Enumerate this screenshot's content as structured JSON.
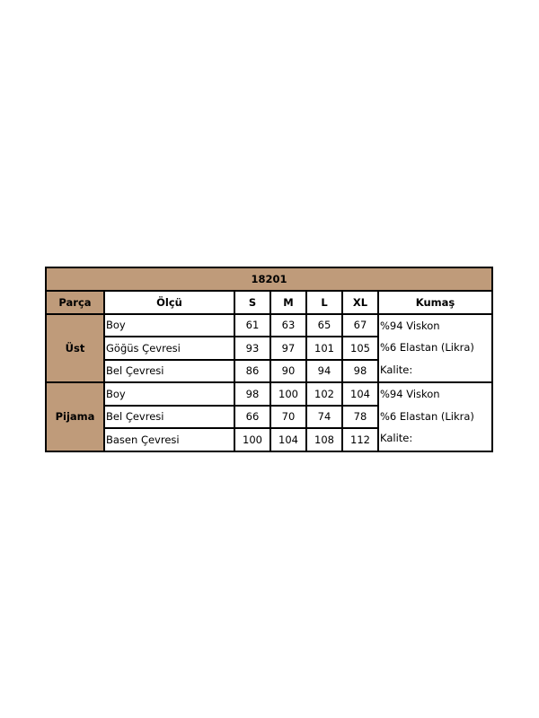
{
  "title": "18201",
  "headers": [
    "Parça",
    "Ölçü",
    "S",
    "M",
    "L",
    "XL",
    "Kumaş"
  ],
  "groups": [
    {
      "part": "Üst",
      "rows": [
        {
          "measure": "Boy",
          "values": [
            "61",
            "63",
            "65",
            "67"
          ]
        },
        {
          "measure": "Göğüs Çevresi",
          "values": [
            "93",
            "97",
            "101",
            "105"
          ]
        },
        {
          "measure": "Bel Çevresi",
          "values": [
            "86",
            "90",
            "94",
            "98"
          ]
        }
      ],
      "fabric": [
        "%94 Viskon",
        "%6 Elastan (Likra)",
        "Kalite:"
      ]
    },
    {
      "part": "Pijama",
      "rows": [
        {
          "measure": "Boy",
          "values": [
            "98",
            "100",
            "102",
            "104"
          ]
        },
        {
          "measure": "Bel Çevresi",
          "values": [
            "66",
            "70",
            "74",
            "78"
          ]
        },
        {
          "measure": "Basen Çevresi",
          "values": [
            "100",
            "104",
            "108",
            "112"
          ]
        }
      ],
      "fabric": [
        "%94 Viskon",
        "%6 Elastan (Likra)",
        "Kalite:"
      ]
    }
  ],
  "colors": {
    "header_bg": "#bf9b7a",
    "border": "#000000"
  }
}
